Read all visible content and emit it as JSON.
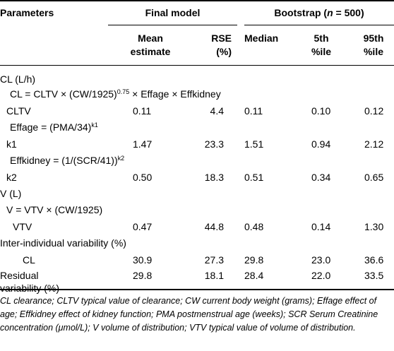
{
  "header": {
    "parameters": "Parameters",
    "final_model": "Final model",
    "bootstrap_prefix": "Bootstrap (",
    "bootstrap_n": "n",
    "bootstrap_suffix": " = 500)",
    "mean_line1": "Mean",
    "mean_line2": "estimate",
    "rse_line1": "RSE",
    "rse_line2": "(%)",
    "median": "Median",
    "p5_line1": "5th",
    "p5_line2": "%ile",
    "p95_line1": "95th",
    "p95_line2": "%ile"
  },
  "rows": {
    "cl_section": "CL (L/h)",
    "cl_eq_main": "CL = CLTV × (CW/1925)",
    "cl_eq_exp": "0.75",
    "cl_eq_tail": " × Effage × Effkidney",
    "cltv": {
      "label": "CLTV",
      "mean": "0.11",
      "rse": "4.4",
      "median": "0.11",
      "p5": "0.10",
      "p95": "0.12"
    },
    "effage_main": "Effage = (PMA/34)",
    "effage_exp": "k1",
    "k1": {
      "label": "k1",
      "mean": "1.47",
      "rse": "23.3",
      "median": "1.51",
      "p5": "0.94",
      "p95": "2.12"
    },
    "effkidney_main": "Effkidney = (1/(SCR/41))",
    "effkidney_exp": "k2",
    "k2": {
      "label": "k2",
      "mean": "0.50",
      "rse": "18.3",
      "median": "0.51",
      "p5": "0.34",
      "p95": "0.65"
    },
    "v_section": "V (L)",
    "v_eq": "V = VTV × (CW/1925)",
    "vtv": {
      "label": "VTV",
      "mean": "0.47",
      "rse": "44.8",
      "median": "0.48",
      "p5": "0.14",
      "p95": "1.30"
    },
    "iiv_label": "Inter-individual variability (%)",
    "cl_iiv": {
      "label": "CL",
      "mean": "30.9",
      "rse": "27.3",
      "median": "29.8",
      "p5": "23.0",
      "p95": "36.6"
    },
    "resid": {
      "label_line1": "Residual",
      "label_line2": "variability (%)",
      "mean": "29.8",
      "rse": "18.1",
      "median": "28.4",
      "p5": "22.0",
      "p95": "33.5"
    }
  },
  "footnote": "CL clearance; CLTV typical value of clearance; CW current body weight (grams); Effage effect of age; Effkidney effect of kidney function; PMA postmenstrual age (weeks); SCR Serum Creatinine concentration (μmol/L); V volume of distribution; VTV typical value of volume of distribution."
}
